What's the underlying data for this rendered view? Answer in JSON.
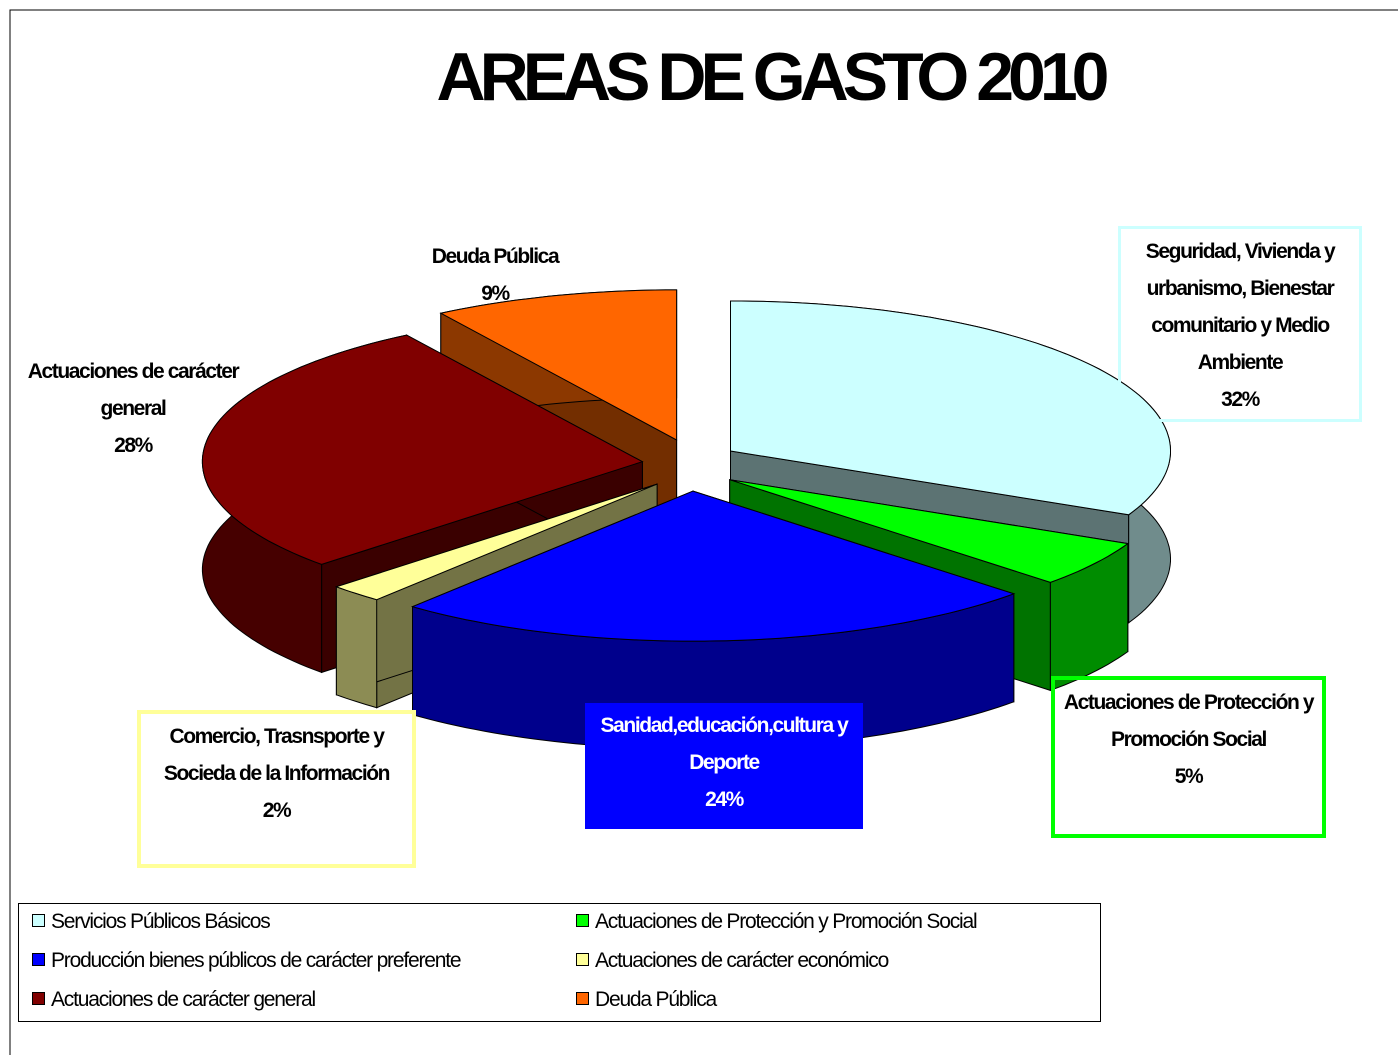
{
  "chart_data": {
    "type": "pie",
    "title": "AREAS DE GASTO 2010",
    "categories": [
      "Servicios Públicos Básicos",
      "Actuaciones de Protección y Promoción Social",
      "Producción bienes públicos de carácter preferente",
      "Actuaciones de carácter económico",
      "Actuaciones de carácter general",
      "Deuda Pública"
    ],
    "values": [
      32,
      5,
      24,
      2,
      28,
      9
    ],
    "value_labels": [
      "32%",
      "5%",
      "24%",
      "2%",
      "28%",
      "9%"
    ],
    "label_names": [
      "Seguridad, Vivienda y urbanismo, Bienestar comunitario y Medio Ambiente",
      "Actuaciones de Protección y Promoción Social",
      "Sanidad,educación,cultura y Deporte",
      "Comercio, Trasnsporte y Socieda de la Información",
      "Actuaciones de carácter general",
      "Deuda Pública"
    ],
    "colors": [
      "#ccffff",
      "#00ff00",
      "#0000ff",
      "#ffff99",
      "#800000",
      "#ff6600"
    ],
    "legend": "bottom"
  }
}
